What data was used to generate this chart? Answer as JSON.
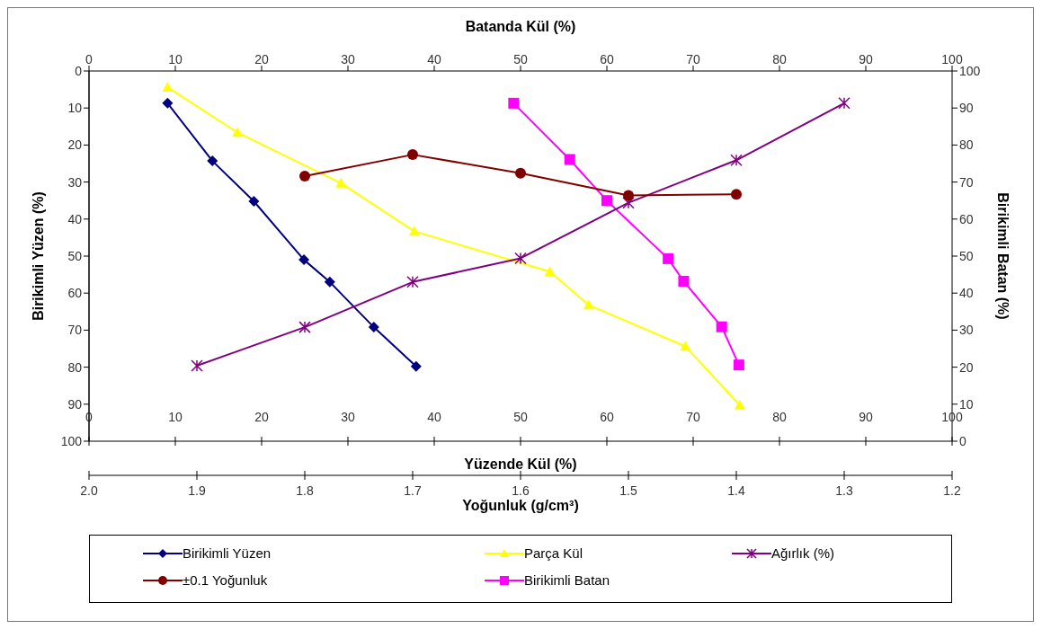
{
  "chart_data": [
    {
      "type": "line",
      "xlabel": "Yoğunluk (g/cm³)",
      "xlim": [
        2.0,
        1.2
      ],
      "xticks": [
        {
          "value": 2.0,
          "label": "2.0"
        },
        {
          "value": 1.9,
          "label": "1.9"
        },
        {
          "value": 1.8,
          "label": "1.8"
        },
        {
          "value": 1.7,
          "label": "1.7"
        },
        {
          "value": 1.6,
          "label": "1.6"
        },
        {
          "value": 1.5,
          "label": "1.5"
        },
        {
          "value": 1.4,
          "label": "1.4"
        },
        {
          "value": 1.3,
          "label": "1.3"
        },
        {
          "value": 1.2,
          "label": "1.2"
        }
      ],
      "ylim": [
        100,
        0
      ],
      "tick_labels": "x",
      "legend": "bottom",
      "series": [
        {
          "name": "Ağırlık (%)",
          "color": "#800080",
          "marker": "cross",
          "x": [
            1.9,
            1.8,
            1.7,
            1.6,
            1.5,
            1.4,
            1.3
          ],
          "values": [
            79.6,
            69.2,
            57.0,
            50.6,
            35.6,
            24.1,
            8.7
          ]
        },
        {
          "name": "±0.1 Yoğunluk",
          "color": "#800000",
          "marker": "circle",
          "x": [
            1.8,
            1.7,
            1.6,
            1.5,
            1.4
          ],
          "values": [
            28.4,
            22.6,
            27.6,
            33.6,
            33.3
          ]
        }
      ]
    },
    {
      "type": "line",
      "xlabel": "Yüzende Kül (%)",
      "xlim": [
        0,
        100
      ],
      "xticks": [
        0,
        10,
        20,
        30,
        40,
        50,
        60,
        70,
        80,
        90,
        100
      ],
      "x2label": "Batanda Kül (%)",
      "x2lim": [
        0,
        100
      ],
      "x2ticks": [
        0,
        10,
        20,
        30,
        40,
        50,
        60,
        70,
        80,
        90,
        100
      ],
      "ylabel": "Birikimli Yüzen (%)",
      "ylim": [
        100,
        0
      ],
      "yticks": [
        0,
        10,
        20,
        30,
        40,
        50,
        60,
        70,
        80,
        90,
        100
      ],
      "y2label": "Birikimli Batan (%)",
      "y2lim": [
        0,
        100
      ],
      "y2ticks": [
        0,
        10,
        20,
        30,
        40,
        50,
        60,
        70,
        80,
        90,
        100
      ],
      "legend": "bottom",
      "series": [
        {
          "name": "Birikimli Yüzen",
          "color": "#000080",
          "marker": "diamond",
          "x": [
            9.1,
            14.3,
            19.1,
            24.9,
            27.9,
            33.0,
            37.9
          ],
          "values": [
            8.7,
            24.3,
            35.2,
            51.0,
            57.0,
            69.2,
            79.8
          ]
        },
        {
          "name": "Parça Kül",
          "color": "#ffff00",
          "marker": "triangle",
          "x": [
            9.1,
            17.2,
            29.2,
            37.7,
            53.4,
            57.9,
            69.1,
            75.4
          ],
          "values": [
            4.4,
            16.6,
            30.3,
            43.3,
            54.2,
            63.2,
            74.4,
            90.3
          ]
        },
        {
          "name": "Birikimli Batan",
          "color": "#ff00ff",
          "marker": "square",
          "axis": "y2",
          "x": [
            49.2,
            55.7,
            60.0,
            67.1,
            68.9,
            73.3,
            75.3
          ],
          "values": [
            91.3,
            76.1,
            65.0,
            49.3,
            43.2,
            30.9,
            20.6
          ]
        }
      ]
    }
  ]
}
